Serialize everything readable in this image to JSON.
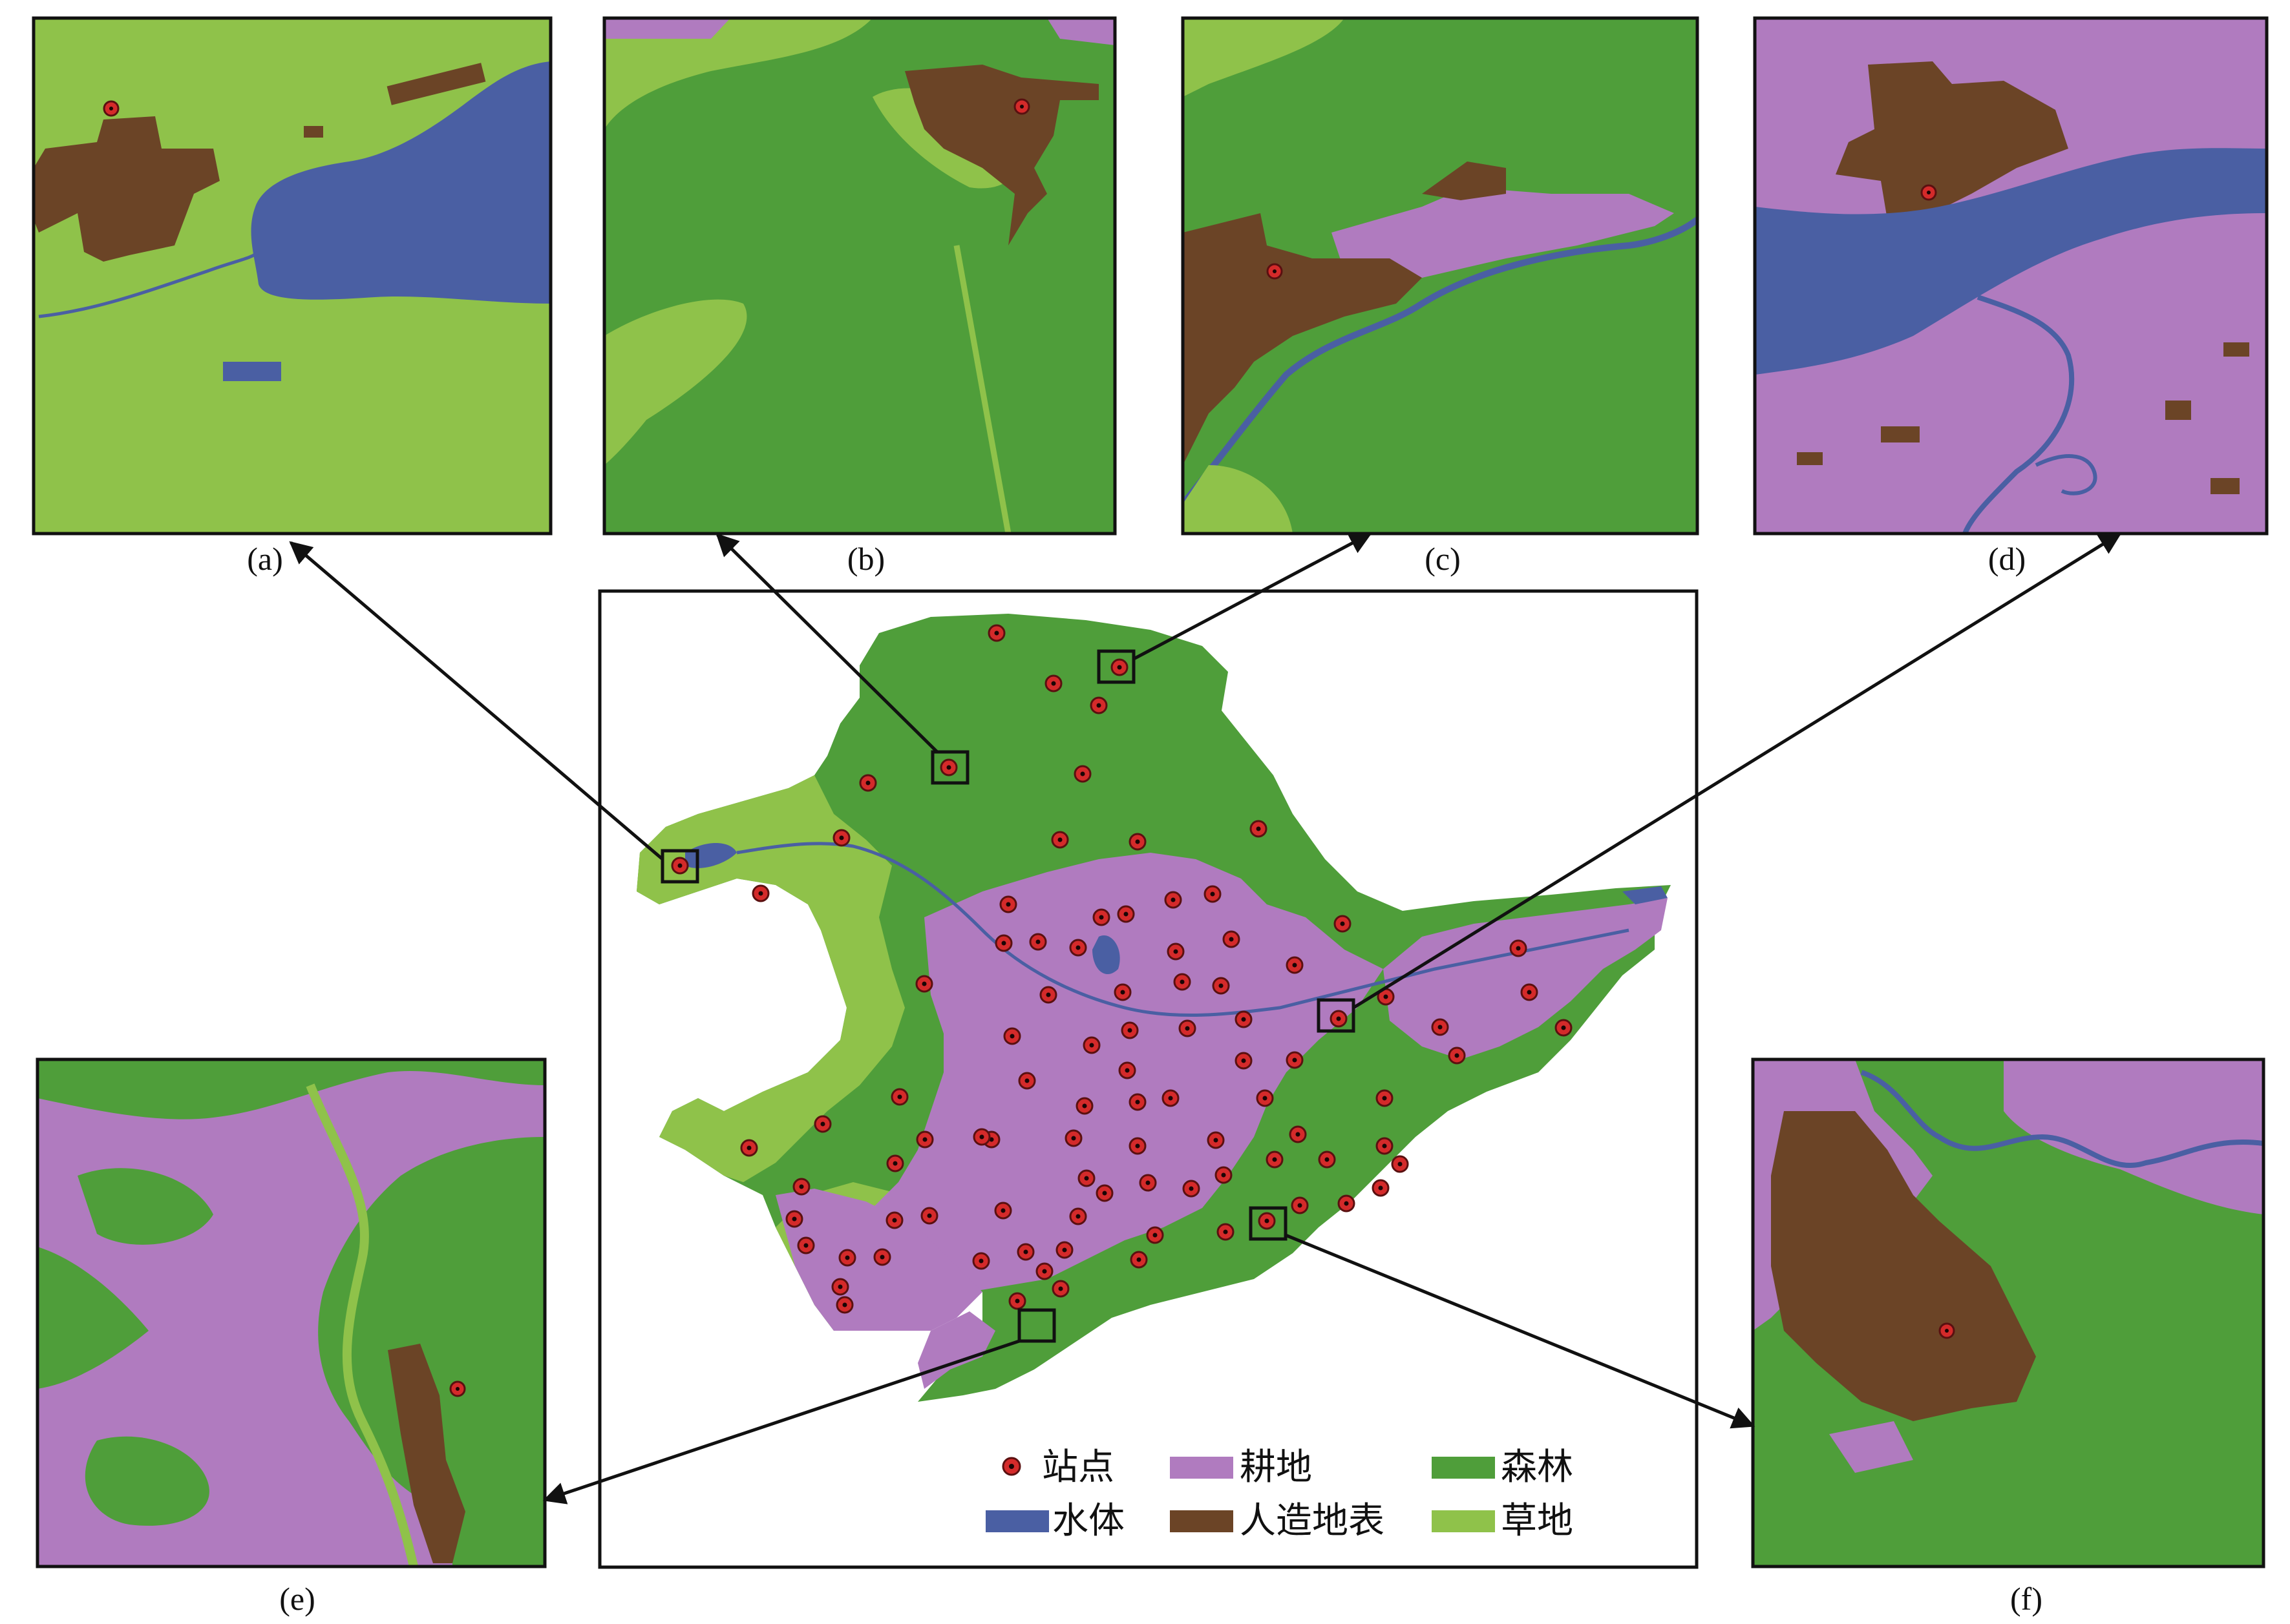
{
  "panels": [
    {
      "id": "a",
      "caption": "(a)"
    },
    {
      "id": "b",
      "caption": "(b)"
    },
    {
      "id": "c",
      "caption": "(c)"
    },
    {
      "id": "d",
      "caption": "(d)"
    },
    {
      "id": "e",
      "caption": "(e)"
    },
    {
      "id": "f",
      "caption": "(f)"
    }
  ],
  "legend": {
    "items": [
      {
        "key": "station",
        "label": "站点",
        "color": "#d42a2a"
      },
      {
        "key": "cropland",
        "label": "耕地",
        "color": "#b07bbf"
      },
      {
        "key": "forest",
        "label": "森林",
        "color": "#4f9e3a"
      },
      {
        "key": "water",
        "label": "水体",
        "color": "#4a5fa3"
      },
      {
        "key": "artificial",
        "label": "人造地表",
        "color": "#6b4426"
      },
      {
        "key": "grassland",
        "label": "草地",
        "color": "#8fc24a"
      }
    ]
  },
  "colors": {
    "forest": "#4f9e3a",
    "grassland": "#8fc24a",
    "cropland": "#b07bbf",
    "water": "#4a5fa3",
    "artificial": "#6b4426",
    "station": "#d42a2a"
  }
}
